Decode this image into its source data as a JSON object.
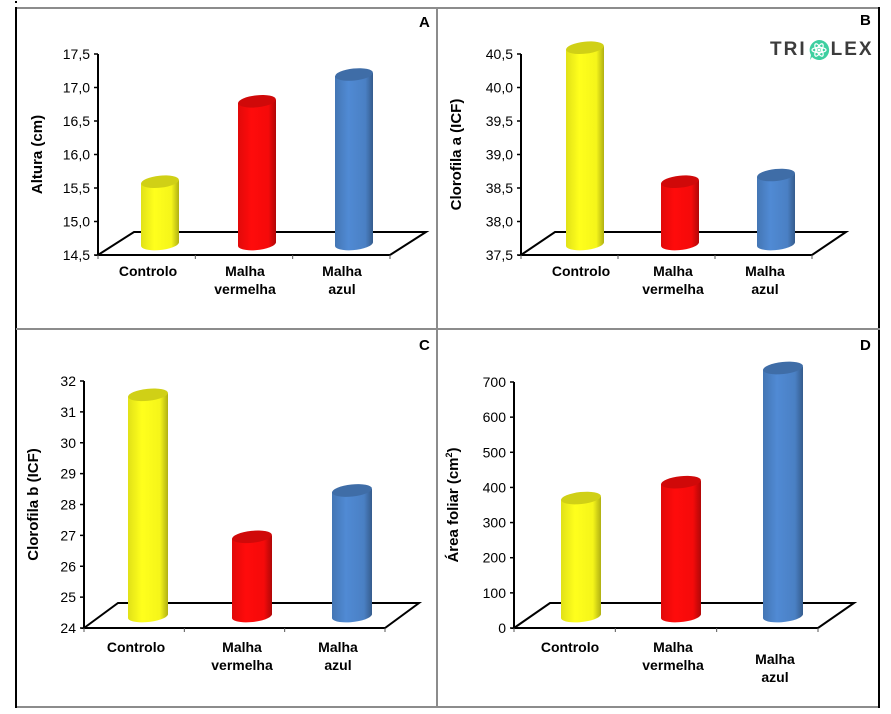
{
  "figure": {
    "logo_text_left": "TRI",
    "logo_text_right": "LEX",
    "logo_icon": "atom-chat-bubble-icon",
    "logo_color": "#3c3c3c",
    "logo_accent": "#3ecfa0"
  },
  "colors": {
    "Controlo": "#f5f51a",
    "Malha vermelha": "#f50a0a",
    "Malha azul": "#4a80c4"
  },
  "chart_data": [
    {
      "panel": "A",
      "type": "bar",
      "style": "3d-cylinder",
      "title": "",
      "ylabel": "Altura (cm)",
      "xlabel": "",
      "categories": [
        "Controlo",
        "Malha vermelha",
        "Malha azul"
      ],
      "category_lines": [
        [
          "Controlo"
        ],
        [
          "Malha",
          "vermelha"
        ],
        [
          "Malha",
          "azul"
        ]
      ],
      "values": [
        15.4,
        16.6,
        17.0
      ],
      "ylim": [
        14.5,
        17.5
      ],
      "yticks": [
        "14,5",
        "15,0",
        "15,5",
        "16,0",
        "16,5",
        "17,0",
        "17,5"
      ],
      "grid": false,
      "legend": "none"
    },
    {
      "panel": "B",
      "type": "bar",
      "style": "3d-cylinder",
      "title": "",
      "ylabel": "Clorofila a (ICF)",
      "xlabel": "",
      "categories": [
        "Controlo",
        "Malha vermelha",
        "Malha azul"
      ],
      "category_lines": [
        [
          "Controlo"
        ],
        [
          "Malha",
          "vermelha"
        ],
        [
          "Malha",
          "azul"
        ]
      ],
      "values": [
        40.4,
        38.4,
        38.5
      ],
      "ylim": [
        37.5,
        40.5
      ],
      "yticks": [
        "37,5",
        "38,0",
        "38,5",
        "39,0",
        "39,5",
        "40,0",
        "40,5"
      ],
      "grid": false,
      "legend": "none"
    },
    {
      "panel": "C",
      "type": "bar",
      "style": "3d-cylinder",
      "title": "",
      "ylabel": "Clorofila b (ICF)",
      "xlabel": "",
      "categories": [
        "Controlo",
        "Malha vermelha",
        "Malha azul"
      ],
      "category_lines": [
        [
          "Controlo"
        ],
        [
          "Malha",
          "vermelha"
        ],
        [
          "Malha",
          "azul"
        ]
      ],
      "values": [
        31.1,
        26.5,
        28.0
      ],
      "ylim": [
        24,
        32
      ],
      "yticks": [
        "24",
        "25",
        "26",
        "27",
        "28",
        "29",
        "30",
        "31",
        "32"
      ],
      "grid": false,
      "legend": "none"
    },
    {
      "panel": "D",
      "type": "bar",
      "style": "3d-cylinder",
      "title": "",
      "ylabel": "Área foliar (cm²)",
      "ylabel_main": "Área foliar (cm",
      "ylabel_sup": "2",
      "ylabel_close": ")",
      "xlabel": "",
      "categories": [
        "Controlo",
        "Malha vermelha",
        "Malha azul"
      ],
      "category_lines": [
        [
          "Controlo"
        ],
        [
          "Malha",
          "vermelha"
        ],
        [
          "Malha",
          "azul"
        ]
      ],
      "values": [
        330,
        375,
        700
      ],
      "ylim": [
        0,
        700
      ],
      "yticks": [
        "0",
        "100",
        "200",
        "300",
        "400",
        "500",
        "600",
        "700"
      ],
      "grid": false,
      "legend": "none"
    }
  ]
}
